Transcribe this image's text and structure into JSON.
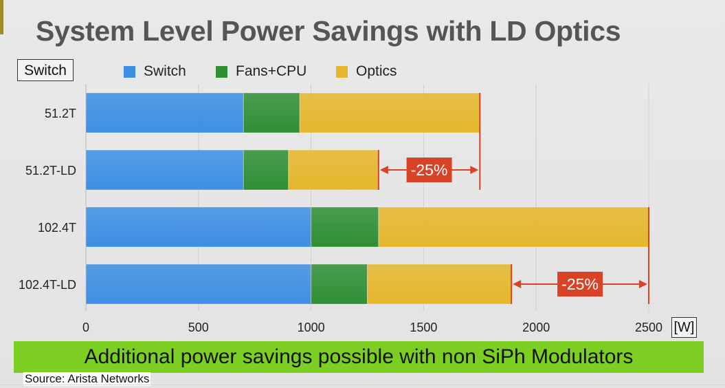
{
  "slide": {
    "title": "System Level Power Savings with LD Optics",
    "banner": "Additional power savings possible with non SiPh Modulators",
    "source": "Source: Arista Networks"
  },
  "colors": {
    "switch": "#3d8fe3",
    "fans_cpu": "#2f8f35",
    "optics": "#e6b72c",
    "annotation": "#d84226",
    "banner": "#7cce22"
  },
  "chart_data": {
    "type": "bar",
    "orientation": "horizontal",
    "stacked": true,
    "title": "System Level Power Savings with LD Optics",
    "ylabel": "Switch",
    "xlabel": "[W]",
    "categories": [
      "51.2T",
      "51.2T-LD",
      "102.4T",
      "102.4T-LD"
    ],
    "series": [
      {
        "name": "Switch",
        "values": [
          700,
          700,
          1000,
          1000
        ]
      },
      {
        "name": "Fans+CPU",
        "values": [
          250,
          200,
          300,
          250
        ]
      },
      {
        "name": "Optics",
        "values": [
          800,
          400,
          1200,
          640
        ]
      }
    ],
    "xlim": [
      0,
      2500
    ],
    "xticks": [
      0,
      500,
      1000,
      1500,
      2000,
      2500
    ],
    "legend_position": "top",
    "annotations": [
      {
        "label": "-25%",
        "from_category": "51.2T",
        "to_category": "51.2T-LD"
      },
      {
        "label": "-25%",
        "from_category": "102.4T",
        "to_category": "102.4T-LD"
      }
    ]
  }
}
